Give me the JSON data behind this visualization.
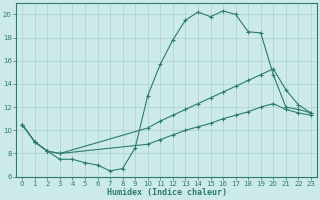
{
  "xlabel": "Humidex (Indice chaleur)",
  "bg_color": "#cceaea",
  "line_color": "#2d7a6e",
  "grid_color": "#aacfcf",
  "xlim": [
    -0.5,
    23.5
  ],
  "ylim": [
    6,
    21
  ],
  "yticks": [
    6,
    8,
    10,
    12,
    14,
    16,
    18,
    20
  ],
  "xticks": [
    0,
    1,
    2,
    3,
    4,
    5,
    6,
    7,
    8,
    9,
    10,
    11,
    12,
    13,
    14,
    15,
    16,
    17,
    18,
    19,
    20,
    21,
    22,
    23
  ],
  "line1_x": [
    0,
    1,
    2,
    3,
    4,
    5,
    6,
    7,
    8,
    9,
    10,
    11,
    12,
    13,
    14,
    15,
    16,
    17,
    18,
    19,
    20,
    21,
    22,
    23
  ],
  "line1_y": [
    10.5,
    9.0,
    8.2,
    7.5,
    7.5,
    7.2,
    7.0,
    6.5,
    6.7,
    8.5,
    13.0,
    15.7,
    17.8,
    19.5,
    20.2,
    19.8,
    20.3,
    20.0,
    18.5,
    18.4,
    14.8,
    12.0,
    11.8,
    11.5
  ],
  "line2_x": [
    0,
    1,
    2,
    3,
    10,
    11,
    12,
    13,
    14,
    15,
    16,
    17,
    18,
    19,
    20,
    21,
    22,
    23
  ],
  "line2_y": [
    10.5,
    9.0,
    8.2,
    8.0,
    10.2,
    10.8,
    11.3,
    11.8,
    12.3,
    12.8,
    13.3,
    13.8,
    14.3,
    14.8,
    15.3,
    13.5,
    12.2,
    11.5
  ],
  "line3_x": [
    0,
    1,
    2,
    3,
    10,
    11,
    12,
    13,
    14,
    15,
    16,
    17,
    18,
    19,
    20,
    21,
    22,
    23
  ],
  "line3_y": [
    10.5,
    9.0,
    8.2,
    8.0,
    8.8,
    9.2,
    9.6,
    10.0,
    10.3,
    10.6,
    11.0,
    11.3,
    11.6,
    12.0,
    12.3,
    11.8,
    11.5,
    11.3
  ]
}
